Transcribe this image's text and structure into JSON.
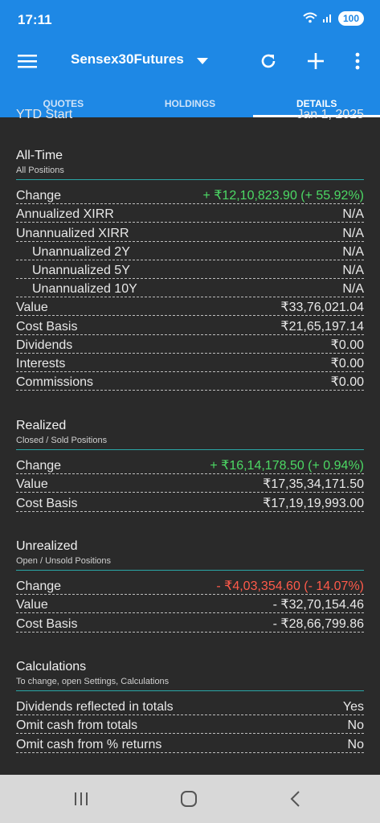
{
  "status_bar": {
    "time": "17:11",
    "battery": "100"
  },
  "app_bar": {
    "title": "Sensex30Futures"
  },
  "tabs": [
    {
      "label": "QUOTES"
    },
    {
      "label": "HOLDINGS"
    },
    {
      "label": "DETAILS"
    }
  ],
  "cutoff_row": {
    "label": "YTD Start",
    "value": "Jan 1, 2025"
  },
  "all_time": {
    "title": "All-Time",
    "subtitle": "All Positions",
    "rows": [
      {
        "label": "Change",
        "value": "+ ₹12,10,823.90 (+ 55.92%)"
      },
      {
        "label": "Annualized XIRR",
        "value": "N/A"
      },
      {
        "label": "Unannualized XIRR",
        "value": "N/A"
      },
      {
        "label": "Unannualized 2Y",
        "value": "N/A"
      },
      {
        "label": "Unannualized 5Y",
        "value": "N/A"
      },
      {
        "label": "Unannualized 10Y",
        "value": "N/A"
      },
      {
        "label": "Value",
        "value": "₹33,76,021.04"
      },
      {
        "label": "Cost Basis",
        "value": "₹21,65,197.14"
      },
      {
        "label": "Dividends",
        "value": "₹0.00"
      },
      {
        "label": "Interests",
        "value": "₹0.00"
      },
      {
        "label": "Commissions",
        "value": "₹0.00"
      }
    ]
  },
  "realized": {
    "title": "Realized",
    "subtitle": "Closed / Sold Positions",
    "rows": [
      {
        "label": "Change",
        "value": "+ ₹16,14,178.50 (+ 0.94%)"
      },
      {
        "label": "Value",
        "value": "₹17,35,34,171.50"
      },
      {
        "label": "Cost Basis",
        "value": "₹17,19,19,993.00"
      }
    ]
  },
  "unrealized": {
    "title": "Unrealized",
    "subtitle": "Open / Unsold Positions",
    "rows": [
      {
        "label": "Change",
        "value": "- ₹4,03,354.60 (- 14.07%)"
      },
      {
        "label": "Value",
        "value": "- ₹32,70,154.46"
      },
      {
        "label": "Cost Basis",
        "value": "- ₹28,66,799.86"
      }
    ]
  },
  "calculations": {
    "title": "Calculations",
    "subtitle": "To change, open Settings, Calculations",
    "rows": [
      {
        "label": "Dividends reflected in totals",
        "value": "Yes"
      },
      {
        "label": "Omit cash from totals",
        "value": "No"
      },
      {
        "label": "Omit cash from % returns",
        "value": "No"
      }
    ]
  },
  "colors": {
    "primary": "#1e88e5",
    "positive": "#4cd964",
    "negative": "#ff5a4a",
    "divider": "#2aa7a7",
    "background": "#2a2a2a"
  }
}
